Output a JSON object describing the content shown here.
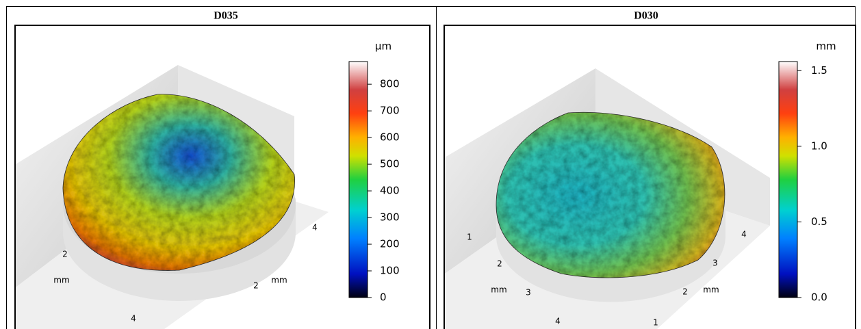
{
  "panels": [
    {
      "title": "D035",
      "colorbar": {
        "unit": "µm",
        "lim": [
          0,
          885
        ],
        "ticks": [
          0,
          100,
          200,
          300,
          400,
          500,
          600,
          700,
          800
        ]
      },
      "axis_left": {
        "unit": "mm",
        "ticks": [
          "2",
          "4"
        ]
      },
      "axis_right": {
        "unit": "mm",
        "ticks": [
          "4",
          "2"
        ]
      }
    },
    {
      "title": "D030",
      "colorbar": {
        "unit": "mm",
        "lim": [
          0,
          1.56
        ],
        "ticks": [
          {
            "value": 0,
            "label": "0.0"
          },
          {
            "value": 0.5,
            "label": "0.5"
          },
          {
            "value": 1,
            "label": "1.0"
          },
          {
            "value": 1.5,
            "label": "1.5"
          }
        ]
      },
      "axis_left": {
        "unit": "mm",
        "ticks": [
          "1",
          "2",
          "3",
          "4"
        ]
      },
      "axis_right": {
        "unit": "mm",
        "ticks": [
          "4",
          "3",
          "2",
          "1"
        ]
      }
    }
  ]
}
